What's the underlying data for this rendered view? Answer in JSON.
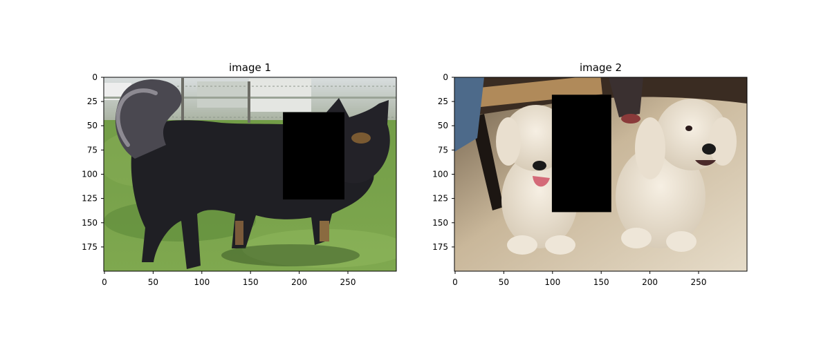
{
  "panels": [
    {
      "title": "image 1",
      "x_ticks": [
        "0",
        "50",
        "100",
        "150",
        "200",
        "250"
      ],
      "y_ticks": [
        "0",
        "25",
        "50",
        "75",
        "100",
        "125",
        "150",
        "175"
      ],
      "image_extent": {
        "width": 300,
        "height": 200
      },
      "occlusion_box": {
        "x0": 183,
        "y0": 36,
        "x1": 246,
        "y1": 126,
        "color": "#000000"
      }
    },
    {
      "title": "image 2",
      "x_ticks": [
        "0",
        "50",
        "100",
        "150",
        "200",
        "250"
      ],
      "y_ticks": [
        "0",
        "25",
        "50",
        "75",
        "100",
        "125",
        "150",
        "175"
      ],
      "image_extent": {
        "width": 300,
        "height": 200
      },
      "occlusion_box": {
        "x0": 100,
        "y0": 18,
        "x1": 161,
        "y1": 139,
        "color": "#000000"
      }
    }
  ]
}
